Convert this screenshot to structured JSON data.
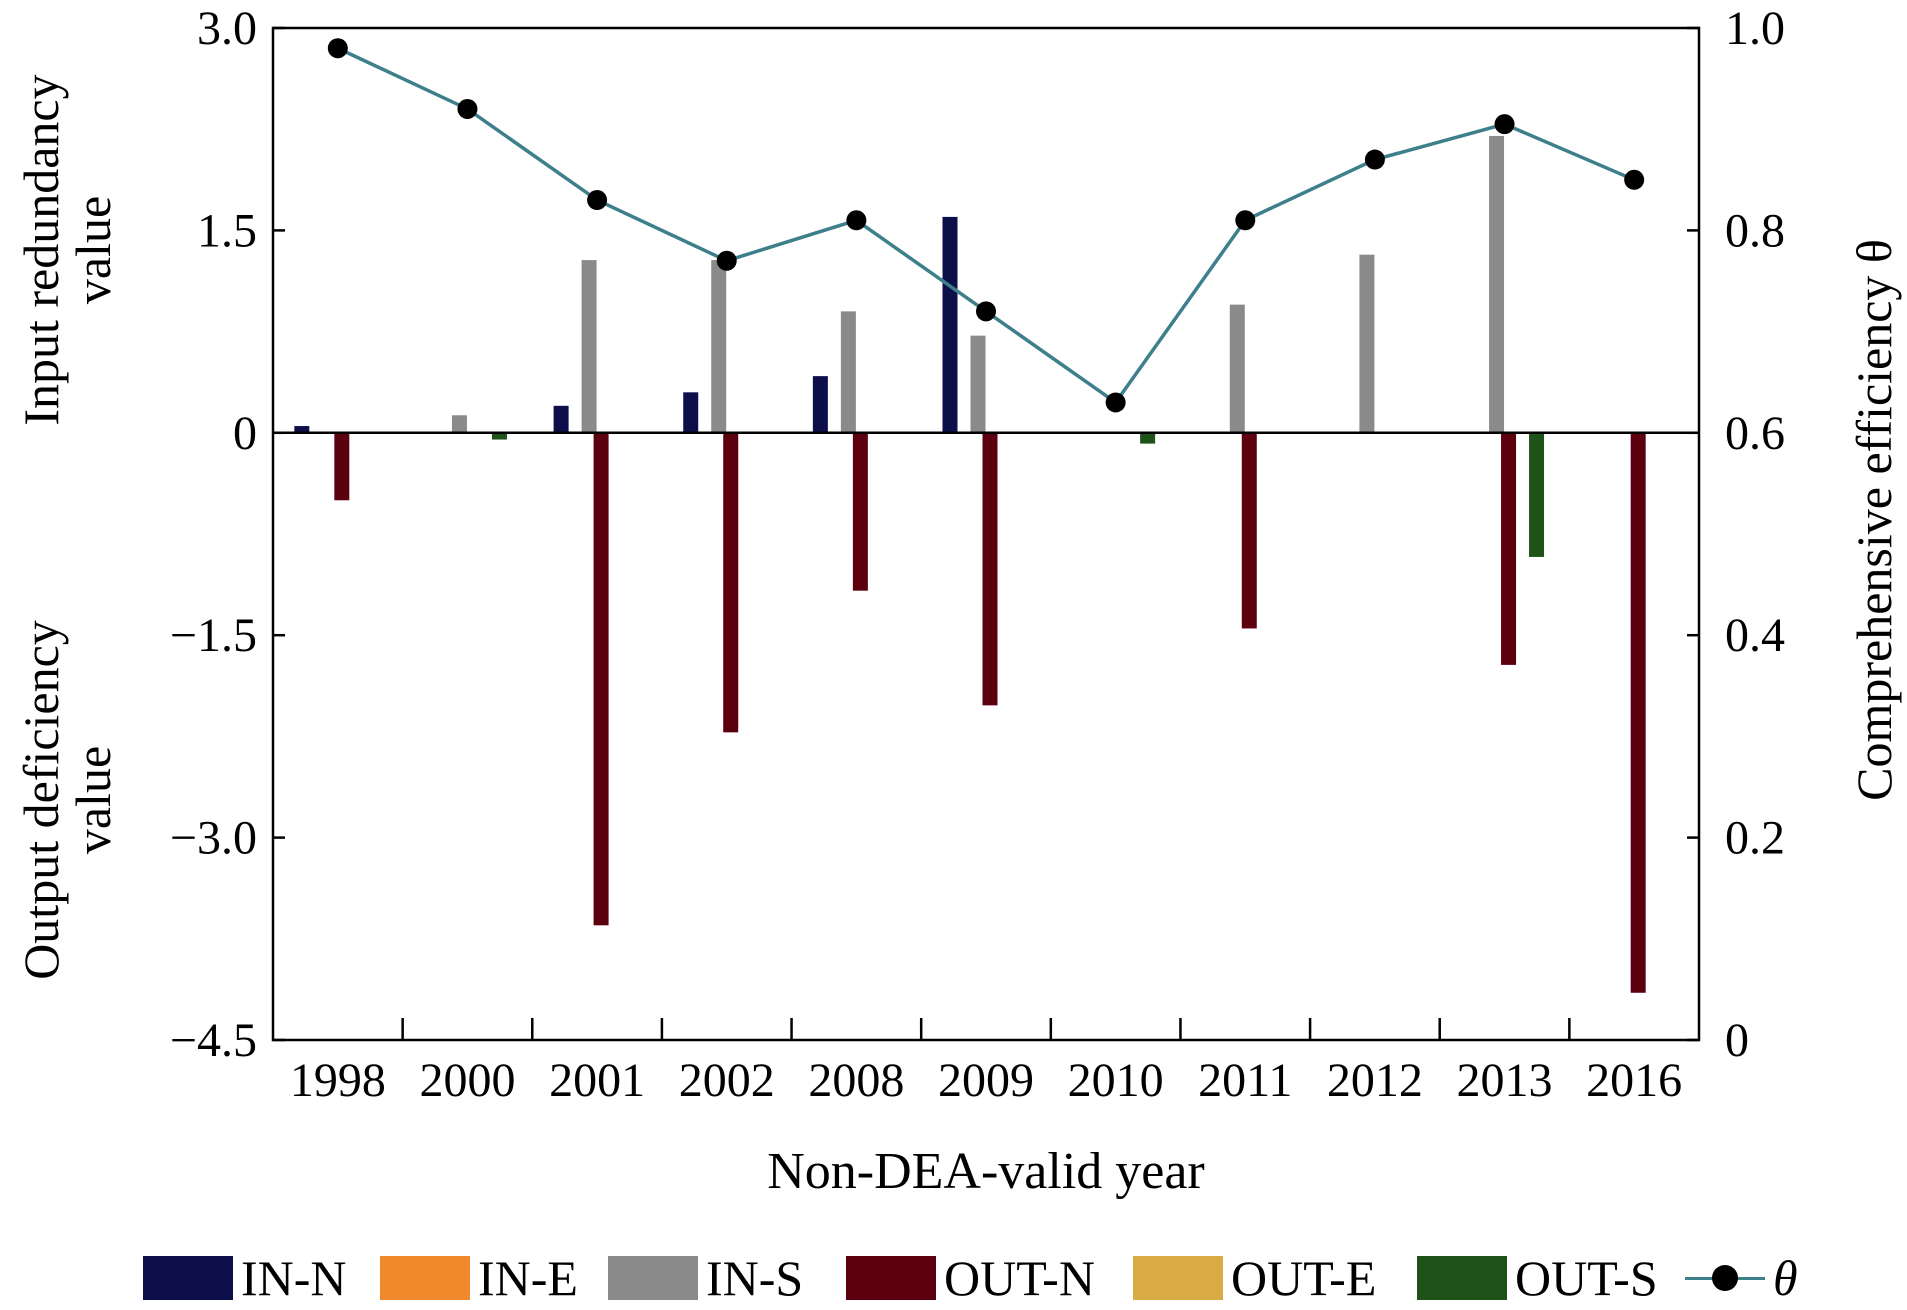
{
  "chart_data": {
    "type": "bar",
    "xlabel": "Non-DEA-valid year",
    "ylabel_top": [
      "Input redundancy",
      "value"
    ],
    "ylabel_bottom": [
      "Output deficiency",
      "value"
    ],
    "y2label": "Comprehensive efficiency θ",
    "ylim": [
      -4.5,
      3.0
    ],
    "y_ticks": [
      "3.0",
      "1.5",
      "0",
      "−1.5",
      "−3.0",
      "−4.5"
    ],
    "y2lim": [
      0,
      1.0
    ],
    "y2_ticks": [
      "1.0",
      "0.8",
      "0.6",
      "0.4",
      "0.2",
      "0"
    ],
    "categories": [
      "1998",
      "2000",
      "2001",
      "2002",
      "2008",
      "2009",
      "2010",
      "2011",
      "2012",
      "2013",
      "2016"
    ],
    "series": [
      {
        "name": "IN-N",
        "color": "#0d0f4a",
        "values": [
          0.05,
          0,
          0.2,
          0.3,
          0.42,
          1.6,
          0,
          0,
          0,
          0,
          0
        ]
      },
      {
        "name": "IN-E",
        "color": "#f08a2c",
        "values": [
          0,
          0,
          0,
          0,
          0,
          0,
          0,
          0,
          0,
          0,
          0
        ]
      },
      {
        "name": "IN-S",
        "color": "#8a8a8a",
        "values": [
          0,
          0.13,
          1.28,
          1.28,
          0.9,
          0.72,
          0,
          0.95,
          1.32,
          2.2,
          0
        ]
      },
      {
        "name": "OUT-N",
        "color": "#5c0010",
        "values": [
          -0.5,
          0,
          -3.65,
          -2.22,
          -1.17,
          -2.02,
          0,
          -1.45,
          0,
          -1.72,
          -4.15
        ]
      },
      {
        "name": "OUT-E",
        "color": "#d9ab45",
        "values": [
          0,
          0,
          0,
          0,
          0,
          0,
          0,
          0,
          0,
          0,
          0
        ]
      },
      {
        "name": "OUT-S",
        "color": "#1e5218",
        "values": [
          0,
          -0.05,
          0,
          0,
          0,
          0,
          -0.08,
          0,
          0,
          -0.92,
          0
        ]
      }
    ],
    "line": {
      "name": "θ",
      "color": "#3d7f8a",
      "axis": "right",
      "values": [
        0.98,
        0.92,
        0.83,
        0.77,
        0.81,
        0.72,
        0.63,
        0.81,
        0.87,
        0.905,
        0.85
      ]
    },
    "legend_position": "bottom",
    "grid": false
  }
}
